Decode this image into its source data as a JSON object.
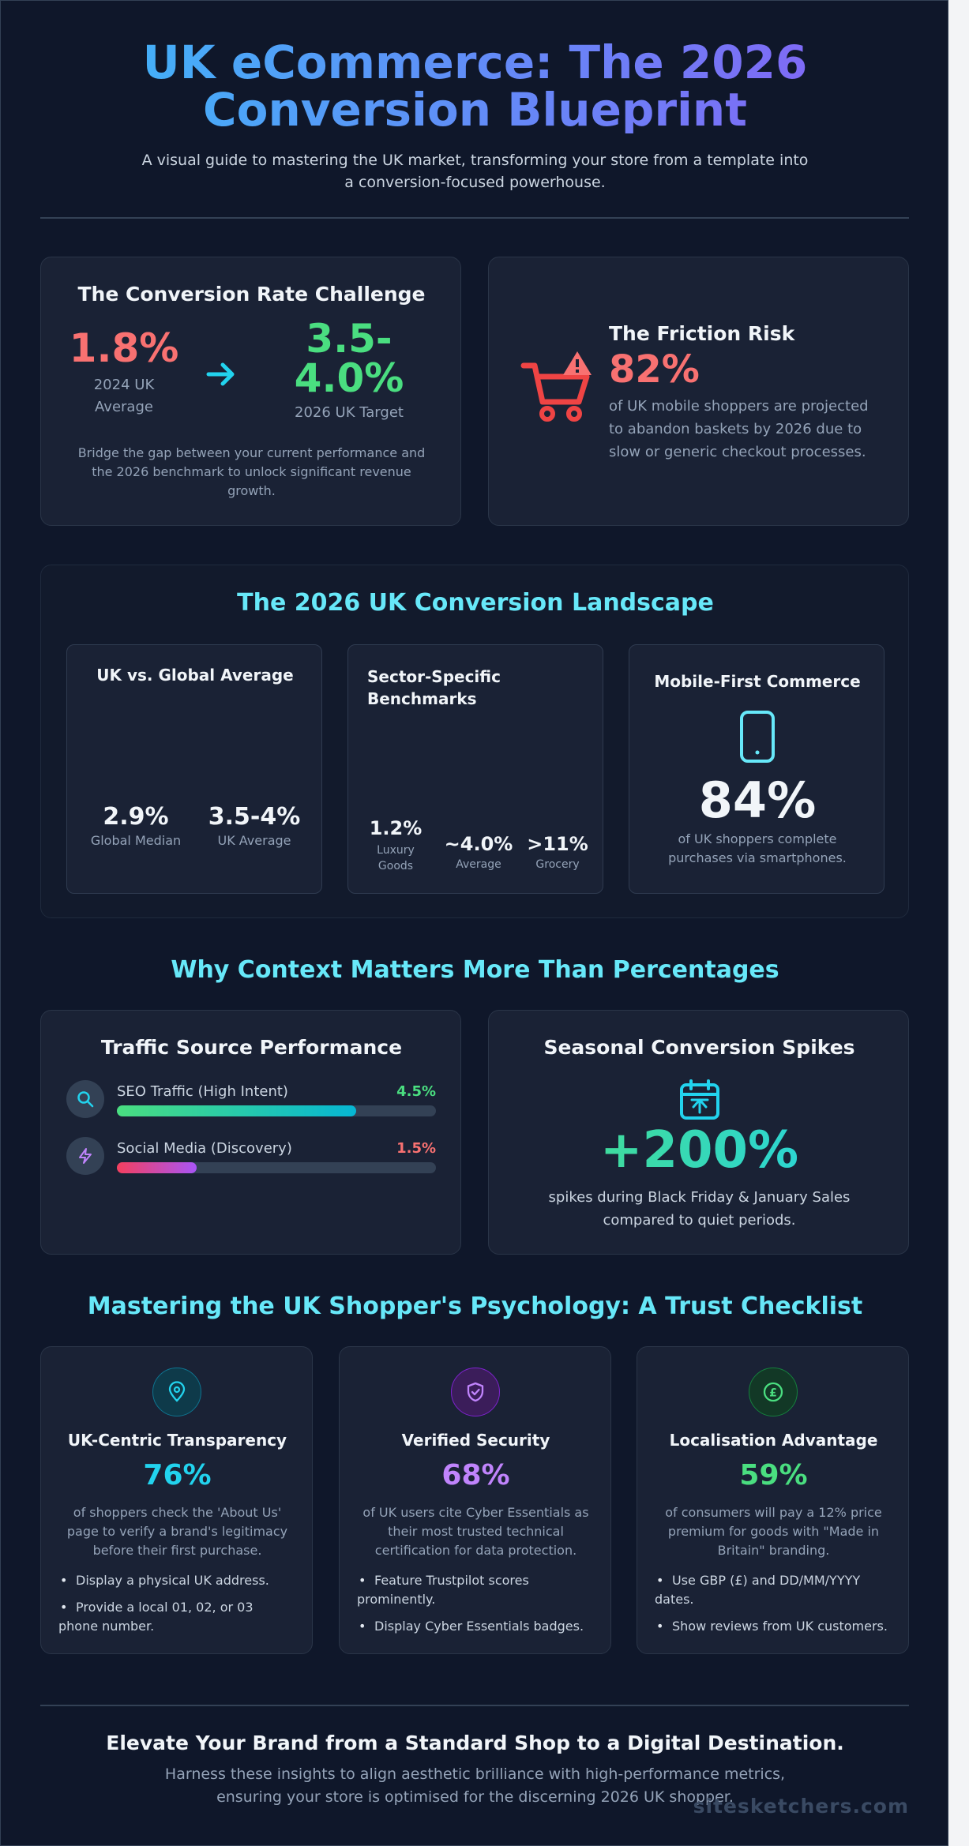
{
  "header": {
    "title_line1": "UK eCommerce: The 2026",
    "title_line2": "Conversion Blueprint",
    "subtitle_line1": "A visual guide to mastering the UK market, transforming your store from a template into",
    "subtitle_line2": "a conversion-focused powerhouse."
  },
  "challenge": {
    "title": "The Conversion Rate Challenge",
    "current_value": "1.8%",
    "current_label_1": "2024 UK",
    "current_label_2": "Average",
    "target_value_1": "3.5-",
    "target_value_2": "4.0%",
    "target_label": "2026 UK Target",
    "desc_1": "Bridge the gap between your current performance and",
    "desc_2": "the 2026 benchmark to unlock significant revenue",
    "desc_3": "growth."
  },
  "friction": {
    "title": "The Friction Risk",
    "value": "82%",
    "desc_1": "of UK mobile shoppers are projected",
    "desc_2": "to abandon baskets by 2026 due to",
    "desc_3": "slow or generic checkout processes.",
    "icon": "cart-alert-icon"
  },
  "landscape": {
    "title": "The 2026 UK Conversion Landscape",
    "global": {
      "title": "UK vs. Global Average",
      "stats": [
        {
          "value": "2.9%",
          "label": "Global Median"
        },
        {
          "value": "3.5-4%",
          "label": "UK Average"
        }
      ]
    },
    "sector": {
      "title_1": "Sector-Specific",
      "title_2": "Benchmarks",
      "stats": [
        {
          "value": "1.2%",
          "label_1": "Luxury",
          "label_2": "Goods"
        },
        {
          "value": "~4.0%",
          "label_1": "Average",
          "label_2": ""
        },
        {
          "value": ">11%",
          "label_1": "Grocery",
          "label_2": ""
        }
      ]
    },
    "mobile": {
      "title": "Mobile-First Commerce",
      "value": "84%",
      "desc_1": "of UK shoppers complete",
      "desc_2": "purchases via smartphones.",
      "icon": "smartphone-icon"
    }
  },
  "context": {
    "title": "Why Context Matters More Than Percentages",
    "traffic": {
      "title": "Traffic Source Performance",
      "rows": [
        {
          "label": "SEO Traffic (High Intent)",
          "value": "4.5%",
          "fill": 0.75,
          "icon": "search-icon"
        },
        {
          "label": "Social Media (Discovery)",
          "value": "1.5%",
          "fill": 0.25,
          "icon": "lightning-icon"
        }
      ]
    },
    "seasonal": {
      "title": "Seasonal Conversion Spikes",
      "value": "+200%",
      "desc_1": "spikes during Black Friday & January Sales",
      "desc_2": "compared to quiet periods.",
      "icon": "calendar-icon"
    }
  },
  "trust": {
    "title": "Mastering the UK Shopper's Psychology: A Trust Checklist",
    "cards": [
      {
        "title": "UK-Centric Transparency",
        "value": "76%",
        "desc_1": "of shoppers check the 'About Us'",
        "desc_2": "page to verify a brand's legitimacy",
        "desc_3": "before their first purchase.",
        "b1_1": "Display a physical UK address.",
        "b1_2": "",
        "b2_1": "Provide a local 01, 02, or 03",
        "b2_2": "phone number.",
        "icon": "location-pin-icon",
        "color": "#22d3ee"
      },
      {
        "title": "Verified Security",
        "value": "68%",
        "desc_1": "of UK users cite Cyber Essentials as",
        "desc_2": "their most trusted technical",
        "desc_3": "certification for data protection.",
        "b1_1": "Feature Trustpilot scores",
        "b1_2": "prominently.",
        "b2_1": "Display Cyber Essentials badges.",
        "b2_2": "",
        "icon": "shield-check-icon",
        "color": "#c084fc"
      },
      {
        "title": "Localisation Advantage",
        "value": "59%",
        "desc_1": "of consumers will pay a 12% price",
        "desc_2": "premium for goods with \"Made in",
        "desc_3": "Britain\" branding.",
        "b1_1": "Use GBP (£) and DD/MM/YYYY",
        "b1_2": "dates.",
        "b2_1": "Show reviews from UK customers.",
        "b2_2": "",
        "icon": "pound-coin-icon",
        "color": "#4ade80"
      }
    ]
  },
  "footer": {
    "title": "Elevate Your Brand from a Standard Shop to a Digital Destination.",
    "desc_1": "Harness these insights to align aesthetic brilliance with high-performance metrics,",
    "desc_2": "ensuring your store is optimised for the discerning 2026 UK shopper.",
    "watermark": "sitesketchers.com"
  },
  "colors": {
    "bg": "#0f172a",
    "card": "#1a2235",
    "cyan": "#67e8f9",
    "red": "#f87171",
    "green": "#4ade80",
    "purple": "#c084fc"
  }
}
